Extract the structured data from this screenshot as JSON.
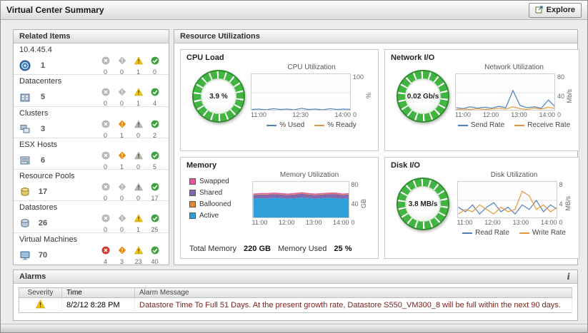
{
  "header": {
    "title": "Virtual Center Summary",
    "explore": "Explore"
  },
  "panels": {
    "related": "Related Items",
    "resources": "Resource Utilizations",
    "alarms": "Alarms",
    "alarms_info": "i"
  },
  "related_items": [
    {
      "label": "10.4.45.4",
      "icon": "vcenter-icon",
      "total": "1",
      "counts": [
        0,
        0,
        1,
        0
      ]
    },
    {
      "label": "Datacenters",
      "icon": "datacenter-icon",
      "total": "5",
      "counts": [
        0,
        0,
        1,
        4
      ]
    },
    {
      "label": "Clusters",
      "icon": "cluster-icon",
      "total": "3",
      "counts": [
        0,
        1,
        0,
        2
      ]
    },
    {
      "label": "ESX Hosts",
      "icon": "esx-host-icon",
      "total": "6",
      "counts": [
        0,
        1,
        0,
        5
      ]
    },
    {
      "label": "Resource Pools",
      "icon": "resource-pool-icon",
      "total": "17",
      "counts": [
        0,
        0,
        0,
        17
      ]
    },
    {
      "label": "Datastores",
      "icon": "datastore-icon",
      "total": "26",
      "counts": [
        0,
        0,
        1,
        25
      ]
    },
    {
      "label": "Virtual Machines",
      "icon": "virtual-machine-icon",
      "total": "70",
      "counts": [
        4,
        3,
        23,
        40
      ]
    }
  ],
  "tiles": {
    "cpu": {
      "title": "CPU Load",
      "gauge_value": "3.9 %",
      "chart_title": "CPU Utilization",
      "legend": [
        {
          "label": "% Used",
          "color": "#4f81bd"
        },
        {
          "label": "% Ready",
          "color": "#e8983a"
        }
      ]
    },
    "network": {
      "title": "Network I/O",
      "gauge_value": "0.02 Gb/s",
      "chart_title": "Network Utilization",
      "legend": [
        {
          "label": "Send Rate",
          "color": "#4f81bd"
        },
        {
          "label": "Receive Rate",
          "color": "#e8983a"
        }
      ]
    },
    "memory": {
      "title": "Memory",
      "chart_title": "Memory Utilization",
      "legend": [
        {
          "label": "Swapped",
          "color": "#e557a0"
        },
        {
          "label": "Shared",
          "color": "#8468ab"
        },
        {
          "label": "Ballooned",
          "color": "#df8a2f"
        },
        {
          "label": "Active",
          "color": "#2e9fd8"
        }
      ],
      "total_label": "Total Memory",
      "total_value": "220 GB",
      "used_label": "Memory Used",
      "used_value": "25 %"
    },
    "disk": {
      "title": "Disk I/O",
      "gauge_value": "3.8 MB/s",
      "chart_title": "Disk Utilization",
      "legend": [
        {
          "label": "Read Rate",
          "color": "#4f81bd"
        },
        {
          "label": "Write Rate",
          "color": "#e8983a"
        }
      ]
    }
  },
  "chart_data": {
    "cpu": {
      "type": "line",
      "ymax": 100,
      "y_ticks": [
        "100",
        "0"
      ],
      "y_unit": "%",
      "x_ticks": [
        "11:00",
        "12:30",
        "14:00"
      ],
      "series": [
        {
          "name": "% Used",
          "color": "#4f81bd",
          "values": [
            4,
            5,
            3,
            6,
            4,
            5,
            3,
            7,
            4,
            5,
            3,
            6,
            4,
            5,
            4
          ]
        },
        {
          "name": "% Ready",
          "color": "#e8983a",
          "values": [
            1,
            1,
            2,
            1,
            1,
            2,
            1,
            1,
            1,
            2,
            1,
            1,
            2,
            1,
            1
          ]
        }
      ]
    },
    "network": {
      "type": "line",
      "ymax": 80,
      "y_ticks": [
        "80",
        "40",
        "0"
      ],
      "y_unit": "Mb/s",
      "x_ticks": [
        "11:00",
        "12:00",
        "13:00",
        "14:00"
      ],
      "series": [
        {
          "name": "Send Rate",
          "color": "#4f81bd",
          "values": [
            7,
            5,
            9,
            6,
            8,
            6,
            10,
            7,
            45,
            12,
            7,
            9,
            6,
            24,
            8
          ]
        },
        {
          "name": "Receive Rate",
          "color": "#e8983a",
          "values": [
            3,
            4,
            3,
            5,
            3,
            4,
            6,
            4,
            9,
            5,
            3,
            6,
            4,
            8,
            5
          ]
        }
      ]
    },
    "memory": {
      "type": "area",
      "ymax": 80,
      "y_ticks": [
        "80",
        "40",
        "0"
      ],
      "y_unit": "GB",
      "x_ticks": [
        "11:00",
        "12:00",
        "13:00",
        "14:00"
      ],
      "series": [
        {
          "name": "Active",
          "color": "#2e9fd8",
          "values": [
            44,
            45,
            44,
            46,
            45,
            44,
            45,
            46,
            45,
            44,
            45,
            46,
            45,
            44,
            45
          ]
        },
        {
          "name": "Shared",
          "color": "#8468ab",
          "values": [
            8,
            8,
            9,
            8,
            8,
            8,
            8,
            9,
            8,
            8,
            8,
            8,
            9,
            8,
            8
          ]
        },
        {
          "name": "Ballooned",
          "color": "#df8a2f",
          "values": [
            1,
            1,
            1,
            1,
            1,
            1,
            1,
            1,
            1,
            1,
            1,
            1,
            1,
            1,
            1
          ]
        },
        {
          "name": "Swapped",
          "color": "#e557a0",
          "values": [
            2,
            2,
            2,
            2,
            2,
            2,
            2,
            2,
            2,
            2,
            2,
            2,
            2,
            2,
            2
          ]
        }
      ]
    },
    "disk": {
      "type": "line",
      "ymax": 8,
      "y_ticks": [
        "8",
        "4",
        "0"
      ],
      "y_unit": "MB/s",
      "x_ticks": [
        "11:00",
        "12:00",
        "13:00",
        "14:00"
      ],
      "series": [
        {
          "name": "Read Rate",
          "color": "#4f81bd",
          "values": [
            2.5,
            1.5,
            3,
            1,
            2.5,
            3.5,
            1.5,
            2.5,
            1,
            3,
            2,
            4,
            1.5,
            3,
            2
          ]
        },
        {
          "name": "Write Rate",
          "color": "#e8983a",
          "values": [
            1,
            2,
            1.5,
            3,
            2,
            1,
            2.5,
            1.5,
            2,
            6,
            5,
            2,
            3,
            1.5,
            2.5
          ]
        }
      ]
    }
  },
  "alarms": {
    "columns": [
      "Severity",
      "Time",
      "Alarm Message"
    ],
    "rows": [
      {
        "severity": "warning",
        "time": "8/2/12 8:28 PM",
        "message": "Datastore Time To Full 51 Days. At the present growth rate, Datastore S550_VM300_8 will be full within the next 90 days."
      }
    ]
  },
  "colors": {
    "fatal": "#cf3a2b",
    "critical": "#e88a00",
    "warning": "#f7c800",
    "normal": "#3fa23f",
    "inactive": "#b6b6b6",
    "gauge_green": "#41b441",
    "line_blue": "#4f81bd",
    "line_orange": "#e8983a"
  }
}
